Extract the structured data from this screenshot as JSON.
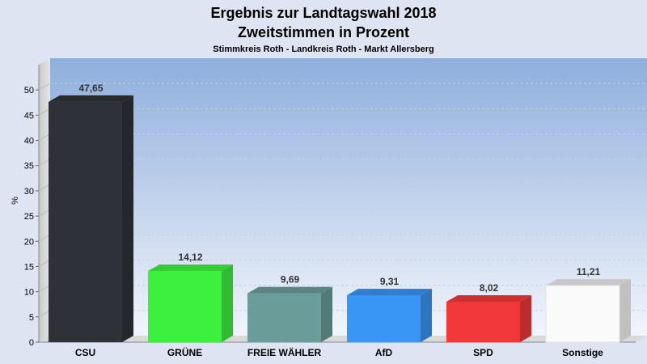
{
  "chart_data": {
    "type": "bar",
    "title": "Ergebnis zur Landtagswahl 2018",
    "subtitle": "Zweitstimmen in Prozent",
    "subsubtitle": "Stimmkreis Roth - Landkreis Roth - Markt Allersberg",
    "ylabel": "%",
    "xlabel": "",
    "ylim": [
      0,
      55
    ],
    "yticks": [
      0,
      5,
      10,
      15,
      20,
      25,
      30,
      35,
      40,
      45,
      50
    ],
    "grid": true,
    "categories": [
      "CSU",
      "GRÜNE",
      "FREIE WÄHLER",
      "AfD",
      "SPD",
      "Sonstige"
    ],
    "values": [
      47.65,
      14.12,
      9.69,
      9.31,
      8.02,
      11.21
    ],
    "value_labels": [
      "47,65",
      "14,12",
      "9,69",
      "9,31",
      "8,02",
      "11,21"
    ],
    "colors": [
      "#2e3238",
      "#3ef03e",
      "#6a9d99",
      "#3a96f5",
      "#f2383a",
      "#fafafa"
    ]
  }
}
